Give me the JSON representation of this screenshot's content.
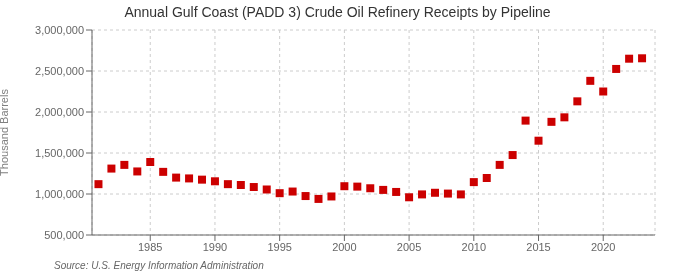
{
  "chart_data": {
    "type": "scatter",
    "title": "Annual Gulf Coast (PADD 3) Crude Oil Refinery Receipts by Pipeline",
    "ylabel": "Thousand Barrels",
    "source": "Source: U.S. Energy Information Administration",
    "x": [
      1981,
      1982,
      1983,
      1984,
      1985,
      1986,
      1987,
      1988,
      1989,
      1990,
      1991,
      1992,
      1993,
      1994,
      1995,
      1996,
      1997,
      1998,
      1999,
      2000,
      2001,
      2002,
      2003,
      2004,
      2005,
      2006,
      2007,
      2008,
      2009,
      2010,
      2011,
      2012,
      2013,
      2014,
      2015,
      2016,
      2017,
      2018,
      2019,
      2020,
      2021,
      2022,
      2023
    ],
    "values": [
      1120000,
      1310000,
      1355000,
      1275000,
      1390000,
      1270000,
      1200000,
      1190000,
      1175000,
      1155000,
      1120000,
      1110000,
      1085000,
      1055000,
      1010000,
      1030000,
      975000,
      940000,
      970000,
      1095000,
      1090000,
      1070000,
      1050000,
      1025000,
      960000,
      995000,
      1015000,
      1005000,
      995000,
      1145000,
      1195000,
      1355000,
      1475000,
      1895000,
      1650000,
      1880000,
      1935000,
      2130000,
      2380000,
      2250000,
      2525000,
      2650000,
      2655000
    ],
    "color": "#cc0000",
    "marker": "square",
    "xlim": [
      1980.5,
      2024
    ],
    "xticks": [
      1985,
      1990,
      1995,
      2000,
      2005,
      2010,
      2015,
      2020
    ],
    "ylim": [
      500000,
      3000000
    ],
    "yticks": [
      {
        "value": 500000,
        "label": "500,000"
      },
      {
        "value": 1000000,
        "label": "1,000,000"
      },
      {
        "value": 1500000,
        "label": "1,500,000"
      },
      {
        "value": 2000000,
        "label": "2,000,000"
      },
      {
        "value": 2500000,
        "label": "2,500,000"
      },
      {
        "value": 3000000,
        "label": "3,000,000"
      }
    ],
    "grid": true
  }
}
